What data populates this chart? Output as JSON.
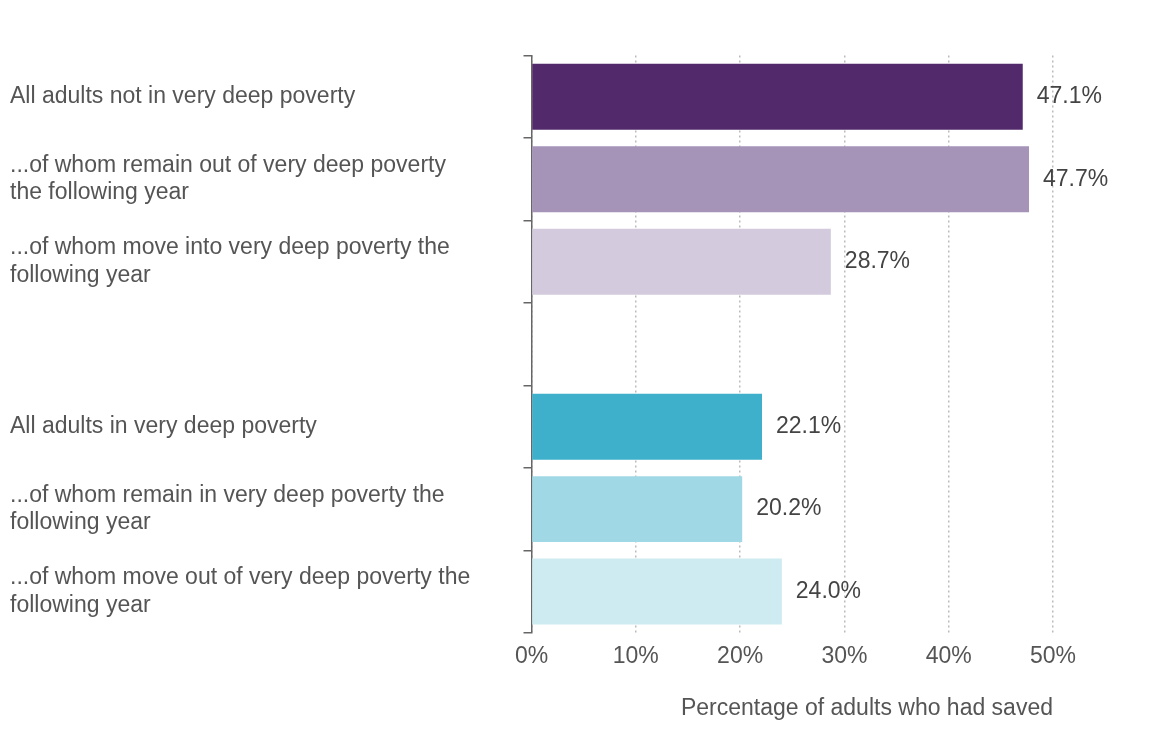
{
  "chart_data": {
    "type": "bar",
    "orientation": "horizontal",
    "categories": [
      "All adults not in very deep poverty",
      "...of whom remain out of very deep poverty the following year",
      "...of whom move into very deep poverty the following year",
      null,
      "All adults in very deep poverty",
      "...of whom remain in very deep poverty the following year",
      "...of whom move out of very deep poverty the following year"
    ],
    "values": [
      47.1,
      47.7,
      28.7,
      null,
      22.1,
      20.2,
      24.0
    ],
    "colors": [
      "#522a6b",
      "#a593b8",
      "#d3cbdd",
      "#ffffff",
      "#3fb0cb",
      "#a0d8e5",
      "#cdebf1"
    ],
    "value_labels": [
      "47.1%",
      "47.7%",
      "28.7%",
      null,
      "22.1%",
      "20.2%",
      "24.0%"
    ],
    "xlim": [
      0,
      50
    ],
    "xticks": [
      {
        "value": 0,
        "label": "0%"
      },
      {
        "value": 10,
        "label": "10%"
      },
      {
        "value": 20,
        "label": "20%"
      },
      {
        "value": 30,
        "label": "30%"
      },
      {
        "value": 40,
        "label": "40%"
      },
      {
        "value": 50,
        "label": "50%"
      }
    ],
    "xlabel": "Percentage of adults who had saved",
    "grid": "x",
    "legend": false
  }
}
